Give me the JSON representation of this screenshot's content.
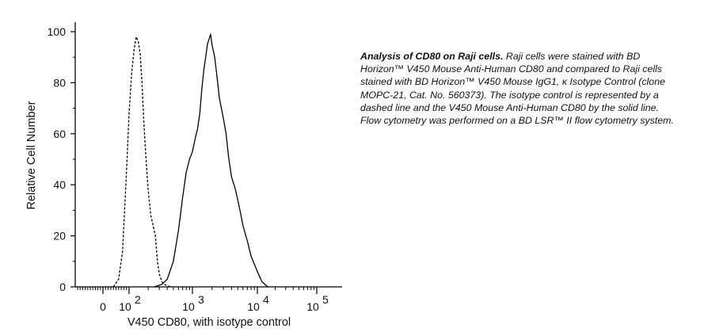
{
  "chart_data": {
    "type": "line",
    "xlabel": "V450 CD80, with isotype control",
    "ylabel": "Relative Cell Number",
    "x_scale": "biexponential",
    "ylim": [
      0,
      100
    ],
    "yticks": [
      "0",
      "20",
      "40",
      "60",
      "80",
      "100"
    ],
    "xticks": [
      {
        "label": "0",
        "value": 0
      },
      {
        "label": "10",
        "sup": "2",
        "value": 100
      },
      {
        "label": "10",
        "sup": "3",
        "value": 1000
      },
      {
        "label": "10",
        "sup": "4",
        "value": 10000
      },
      {
        "label": "10",
        "sup": "5",
        "value": 100000
      }
    ],
    "grid": false,
    "series": [
      {
        "style": "dashed",
        "x": [
          40,
          60,
          75,
          90,
          100,
          110,
          120,
          130,
          140,
          150,
          160,
          170,
          185,
          200,
          220,
          240,
          260,
          280,
          300,
          330,
          360,
          400,
          450
        ],
        "y": [
          0,
          3,
          14,
          45,
          68,
          84,
          93,
          98,
          96,
          91,
          80,
          66,
          50,
          38,
          28,
          24,
          20,
          10,
          5,
          2,
          1,
          0.5,
          0
        ]
      },
      {
        "style": "solid",
        "x": [
          250,
          330,
          400,
          500,
          600,
          700,
          800,
          900,
          1000,
          1100,
          1200,
          1300,
          1400,
          1500,
          1600,
          1700,
          1800,
          1900,
          2000,
          2200,
          2400,
          2600,
          3000,
          3300,
          3600,
          4000,
          4500,
          5000,
          5500,
          6000,
          7000,
          8000,
          10000,
          12000,
          15000
        ],
        "y": [
          0,
          1,
          3,
          10,
          22,
          35,
          45,
          50,
          53,
          58,
          62,
          68,
          78,
          85,
          90,
          95,
          97,
          99,
          95,
          90,
          82,
          74,
          66,
          60,
          51,
          43,
          39,
          34,
          29,
          24,
          18,
          12,
          6,
          2,
          0
        ]
      }
    ]
  },
  "caption": {
    "title": "Analysis of CD80 on Raji cells.",
    "text": "Raji cells were stained with BD Horizon™ V450 Mouse Anti-Human CD80 and compared to Raji cells stained with BD Horizon™ V450 Mouse IgG1, κ Isotype Control (clone MOPC-21, Cat. No. 560373). The isotype control is represented by a dashed line and the V450 Mouse Anti-Human CD80 by the solid line. Flow cytometry was performed on a BD LSR™ II flow cytometry system."
  }
}
